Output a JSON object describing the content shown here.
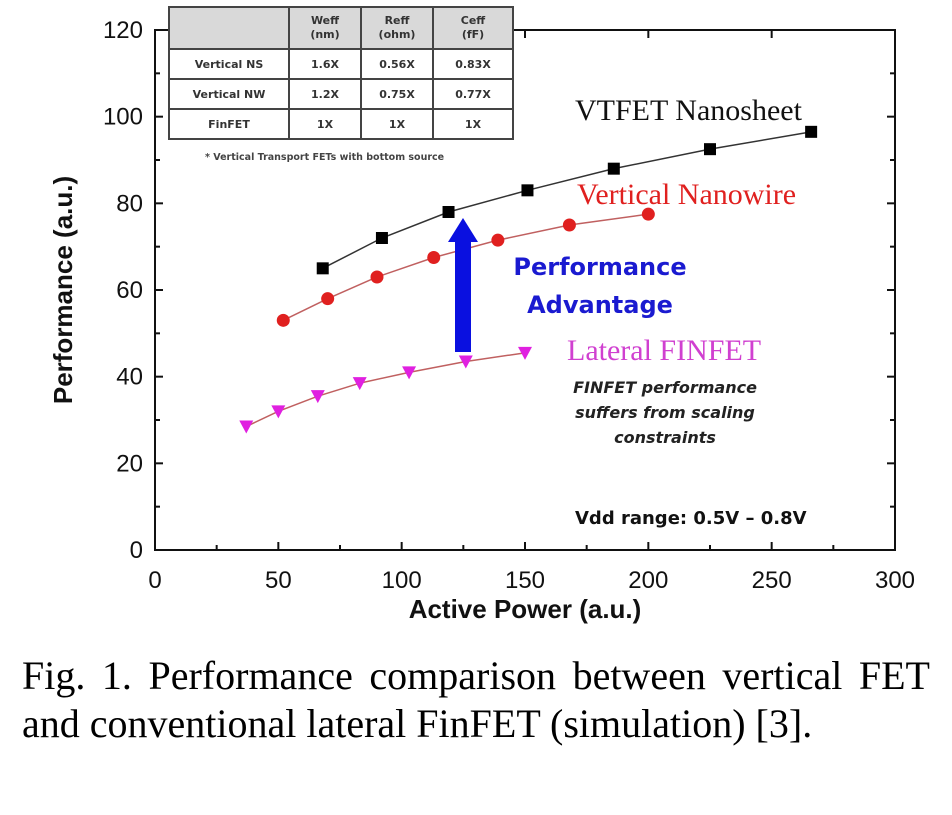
{
  "chart_data": {
    "type": "line",
    "xlabel": "Active Power (a.u.)",
    "ylabel": "Performance (a.u.)",
    "xlim": [
      0,
      300
    ],
    "ylim": [
      0,
      120
    ],
    "xticks": [
      0,
      50,
      100,
      150,
      200,
      250,
      300
    ],
    "yticks": [
      0,
      20,
      40,
      60,
      80,
      100,
      120
    ],
    "grid": false,
    "series": [
      {
        "name": "VTFET Nanosheet",
        "color": "#000000",
        "marker": "square",
        "x": [
          68,
          92,
          119,
          151,
          186,
          225,
          266
        ],
        "y": [
          65,
          72,
          78,
          83,
          88,
          92.5,
          96.5
        ]
      },
      {
        "name": "Vertical Nanowire",
        "color": "#e0201f",
        "marker": "circle",
        "x": [
          52,
          70,
          90,
          113,
          139,
          168,
          200
        ],
        "y": [
          53,
          58,
          63,
          67.5,
          71.5,
          75,
          77.5
        ]
      },
      {
        "name": "Lateral FINFET",
        "color": "#e020e0",
        "marker": "triangle-down",
        "x": [
          37,
          50,
          66,
          83,
          103,
          126,
          150
        ],
        "y": [
          28.5,
          32,
          35.5,
          38.5,
          41,
          43.5,
          45.5
        ]
      }
    ],
    "annotations": {
      "advantage": [
        "Performance",
        "Advantage"
      ],
      "finfet_note": [
        "FINFET performance",
        "suffers from scaling",
        "constraints"
      ],
      "vdd": "Vdd range:  0.5V – 0.8V",
      "arrow_color": "#0a10e0"
    },
    "table": {
      "headers": [
        [
          "Weff",
          "(nm)"
        ],
        [
          "Reff",
          "(ohm)"
        ],
        [
          "Ceff",
          "(fF)"
        ]
      ],
      "rows": [
        {
          "label": "Vertical NS",
          "values": [
            "1.6X",
            "0.56X",
            "0.83X"
          ]
        },
        {
          "label": "Vertical NW",
          "values": [
            "1.2X",
            "0.75X",
            "0.77X"
          ]
        },
        {
          "label": "FinFET",
          "values": [
            "1X",
            "1X",
            "1X"
          ]
        }
      ],
      "note": "* Vertical Transport FETs with bottom source"
    }
  },
  "caption": "Fig. 1. Performance comparison between vertical FET and conventional lateral FinFET (simulation) [3]."
}
